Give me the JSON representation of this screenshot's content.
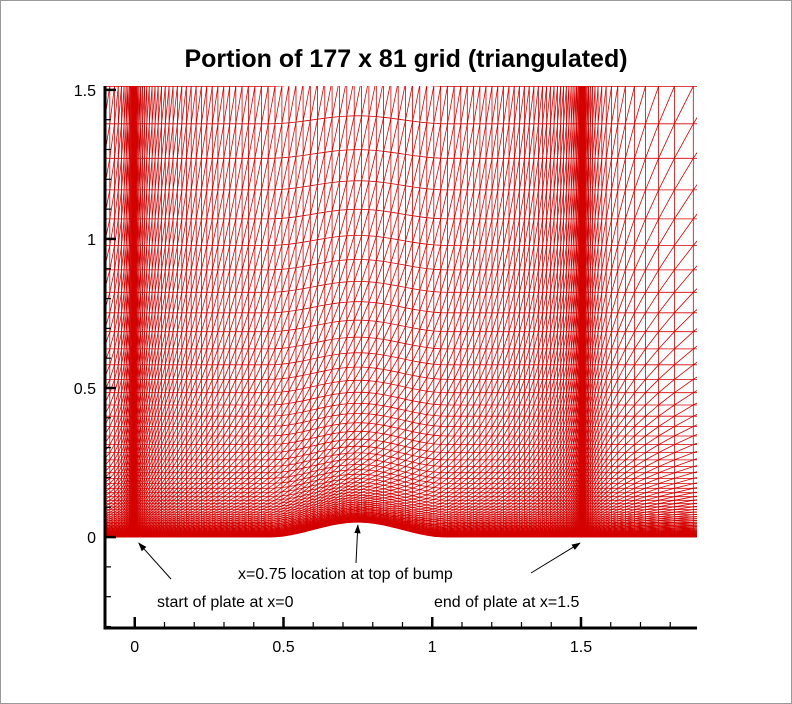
{
  "chart_data": {
    "type": "mesh",
    "title": "Portion of 177 x 81 grid (triangulated)",
    "grid_dims": [
      177,
      81
    ],
    "xlim": [
      -0.1,
      1.89
    ],
    "ylim": [
      -0.305,
      1.513
    ],
    "x_ticks": [
      {
        "v": 0,
        "label": "0"
      },
      {
        "v": 0.5,
        "label": "0.5"
      },
      {
        "v": 1,
        "label": "1"
      },
      {
        "v": 1.5,
        "label": "1.5"
      }
    ],
    "y_ticks": [
      {
        "v": 0,
        "label": "0"
      },
      {
        "v": 0.5,
        "label": "0.5"
      },
      {
        "v": 1,
        "label": "1"
      },
      {
        "v": 1.5,
        "label": "1.5"
      }
    ],
    "minor_tick_step": 0.1,
    "mesh_color": "#d40000",
    "plate_start": 0,
    "plate_end": 1.5,
    "bump": {
      "center": 0.75,
      "start": 0.45,
      "end": 1.05,
      "height": 0.05
    },
    "annotations": [
      {
        "text": "start of plate at x=0",
        "arrow_to": [
          0,
          0
        ]
      },
      {
        "text": "x=0.75 location at top of bump",
        "arrow_to": [
          0.75,
          0.05
        ]
      },
      {
        "text": "end of plate at x=1.5",
        "arrow_to": [
          1.5,
          0
        ]
      }
    ]
  }
}
